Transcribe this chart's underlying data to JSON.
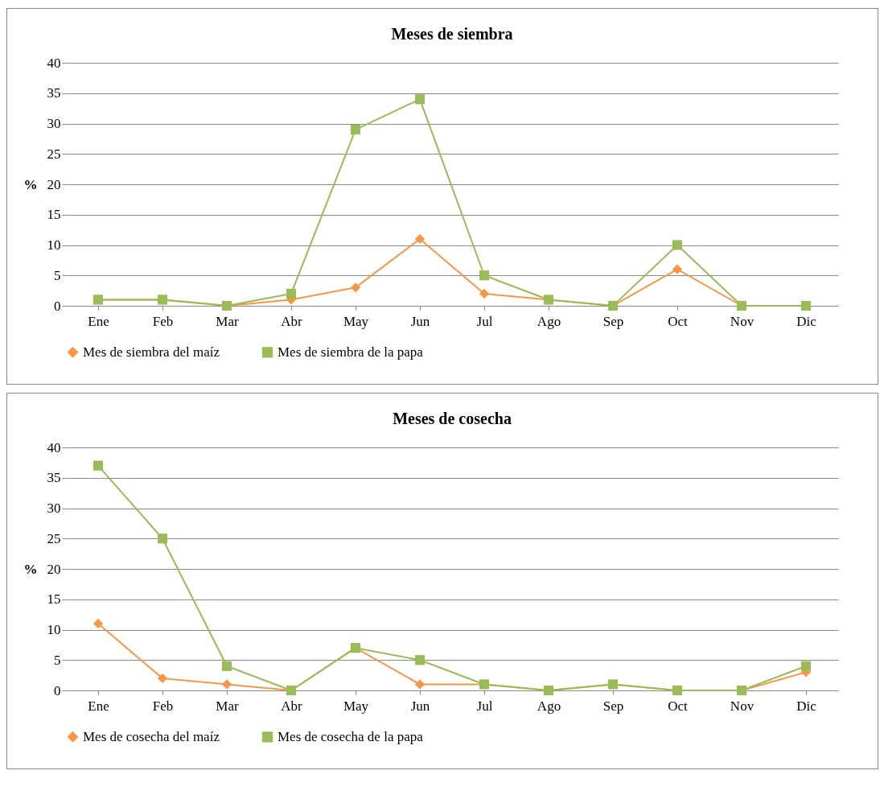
{
  "chart_data": [
    {
      "type": "line",
      "title": "Meses de siembra",
      "ylabel": "%",
      "categories": [
        "Ene",
        "Feb",
        "Mar",
        "Abr",
        "May",
        "Jun",
        "Jul",
        "Ago",
        "Sep",
        "Oct",
        "Nov",
        "Dic"
      ],
      "ylim": [
        0,
        40
      ],
      "yticks": [
        0,
        5,
        10,
        15,
        20,
        25,
        30,
        35,
        40
      ],
      "grid": "y",
      "legend": "bottom",
      "series": [
        {
          "name": "Mes de siembra del maíz",
          "color": "#f79646",
          "marker": "diamond",
          "values": [
            1,
            1,
            0,
            1,
            3,
            11,
            2,
            1,
            0,
            6,
            0,
            0
          ]
        },
        {
          "name": "Mes de siembra de la papa",
          "color": "#9bbb59",
          "marker": "square",
          "values": [
            1,
            1,
            0,
            2,
            29,
            34,
            5,
            1,
            0,
            10,
            0,
            0
          ]
        }
      ]
    },
    {
      "type": "line",
      "title": "Meses de cosecha",
      "ylabel": "%",
      "categories": [
        "Ene",
        "Feb",
        "Mar",
        "Abr",
        "May",
        "Jun",
        "Jul",
        "Ago",
        "Sep",
        "Oct",
        "Nov",
        "Dic"
      ],
      "ylim": [
        0,
        40
      ],
      "yticks": [
        0,
        5,
        10,
        15,
        20,
        25,
        30,
        35,
        40
      ],
      "grid": "y",
      "legend": "bottom",
      "series": [
        {
          "name": "Mes de cosecha del maíz",
          "color": "#f79646",
          "marker": "diamond",
          "values": [
            11,
            2,
            1,
            0,
            7,
            1,
            1,
            0,
            1,
            0,
            0,
            3
          ]
        },
        {
          "name": "Mes de cosecha de la papa",
          "color": "#9bbb59",
          "marker": "square",
          "values": [
            37,
            25,
            4,
            0,
            7,
            5,
            1,
            0,
            1,
            0,
            0,
            4
          ]
        }
      ]
    }
  ]
}
